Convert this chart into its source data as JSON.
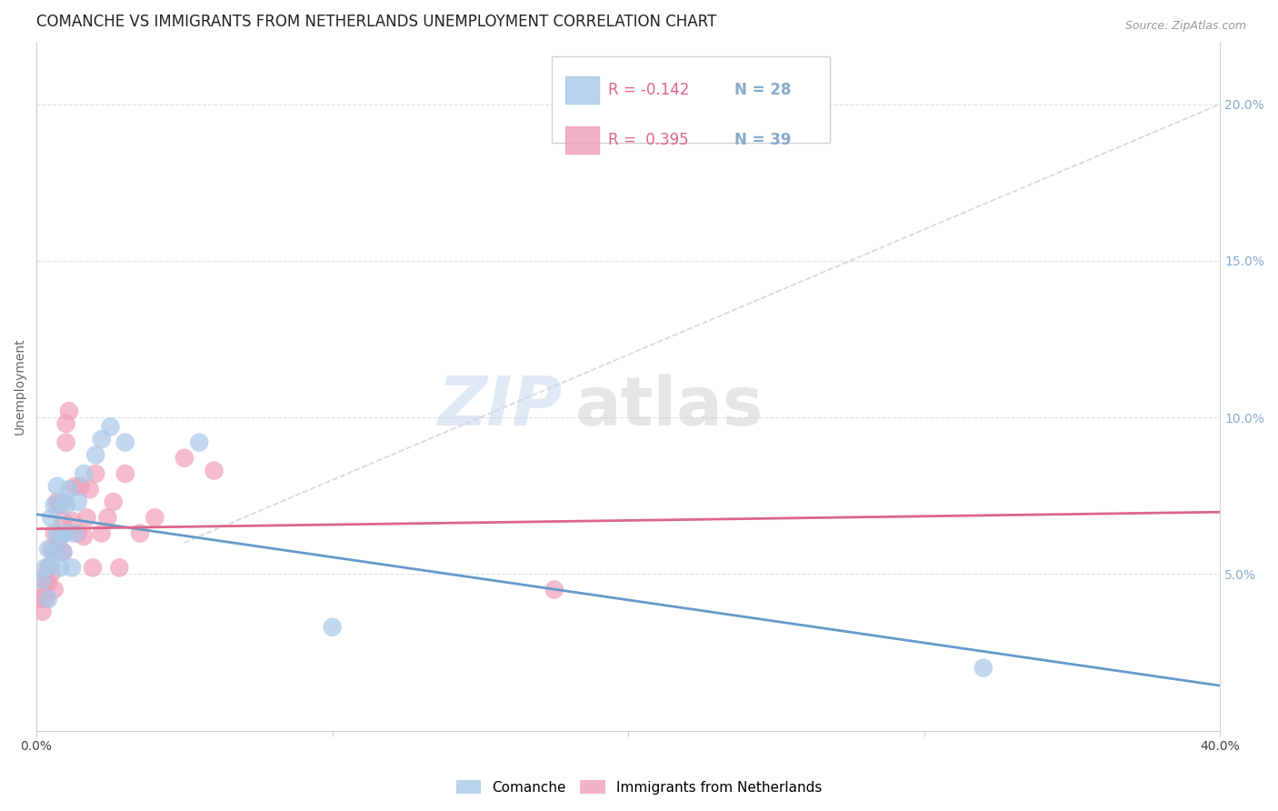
{
  "title": "COMANCHE VS IMMIGRANTS FROM NETHERLANDS UNEMPLOYMENT CORRELATION CHART",
  "source": "Source: ZipAtlas.com",
  "ylabel": "Unemployment",
  "watermark_zip": "ZIP",
  "watermark_atlas": "atlas",
  "legend_comanche_R": "-0.142",
  "legend_comanche_N": "28",
  "legend_netherlands_R": "0.395",
  "legend_netherlands_N": "39",
  "comanche_color": "#a8c8e8",
  "netherlands_color": "#f0a0b8",
  "trend_comanche_color": "#6699cc",
  "trend_netherlands_color": "#dd6688",
  "trend_dashed_color": "#d0c8d8",
  "right_axis_color": "#88aacc",
  "comanche_x": [
    0.002,
    0.003,
    0.004,
    0.004,
    0.005,
    0.005,
    0.006,
    0.006,
    0.007,
    0.007,
    0.008,
    0.008,
    0.009,
    0.009,
    0.01,
    0.01,
    0.011,
    0.012,
    0.013,
    0.014,
    0.016,
    0.02,
    0.022,
    0.025,
    0.03,
    0.055,
    0.1,
    0.32
  ],
  "comanche_y": [
    0.048,
    0.052,
    0.042,
    0.058,
    0.053,
    0.068,
    0.057,
    0.072,
    0.063,
    0.078,
    0.052,
    0.062,
    0.073,
    0.057,
    0.072,
    0.063,
    0.077,
    0.052,
    0.063,
    0.073,
    0.082,
    0.088,
    0.093,
    0.097,
    0.092,
    0.092,
    0.033,
    0.02
  ],
  "netherlands_x": [
    0.001,
    0.002,
    0.002,
    0.003,
    0.003,
    0.004,
    0.004,
    0.005,
    0.005,
    0.006,
    0.006,
    0.007,
    0.007,
    0.008,
    0.008,
    0.009,
    0.009,
    0.01,
    0.01,
    0.011,
    0.012,
    0.013,
    0.014,
    0.015,
    0.016,
    0.017,
    0.018,
    0.019,
    0.02,
    0.022,
    0.024,
    0.026,
    0.028,
    0.03,
    0.035,
    0.04,
    0.05,
    0.06,
    0.175
  ],
  "netherlands_y": [
    0.042,
    0.038,
    0.045,
    0.048,
    0.042,
    0.052,
    0.047,
    0.05,
    0.058,
    0.045,
    0.063,
    0.058,
    0.073,
    0.062,
    0.072,
    0.057,
    0.067,
    0.092,
    0.098,
    0.102,
    0.067,
    0.078,
    0.063,
    0.078,
    0.062,
    0.068,
    0.077,
    0.052,
    0.082,
    0.063,
    0.068,
    0.073,
    0.052,
    0.082,
    0.063,
    0.068,
    0.087,
    0.083,
    0.045
  ],
  "xlim": [
    0.0,
    0.4
  ],
  "ylim": [
    0.0,
    0.22
  ],
  "yticks": [
    0.05,
    0.1,
    0.15,
    0.2
  ],
  "ytick_labels": [
    "5.0%",
    "10.0%",
    "15.0%",
    "20.0%"
  ],
  "xtick_labels": [
    "0.0%",
    "",
    "",
    "",
    "40.0%"
  ],
  "background_color": "#ffffff",
  "grid_color": "#dde0e8",
  "title_fontsize": 12,
  "axis_label_fontsize": 10,
  "tick_fontsize": 10,
  "source_fontsize": 9
}
